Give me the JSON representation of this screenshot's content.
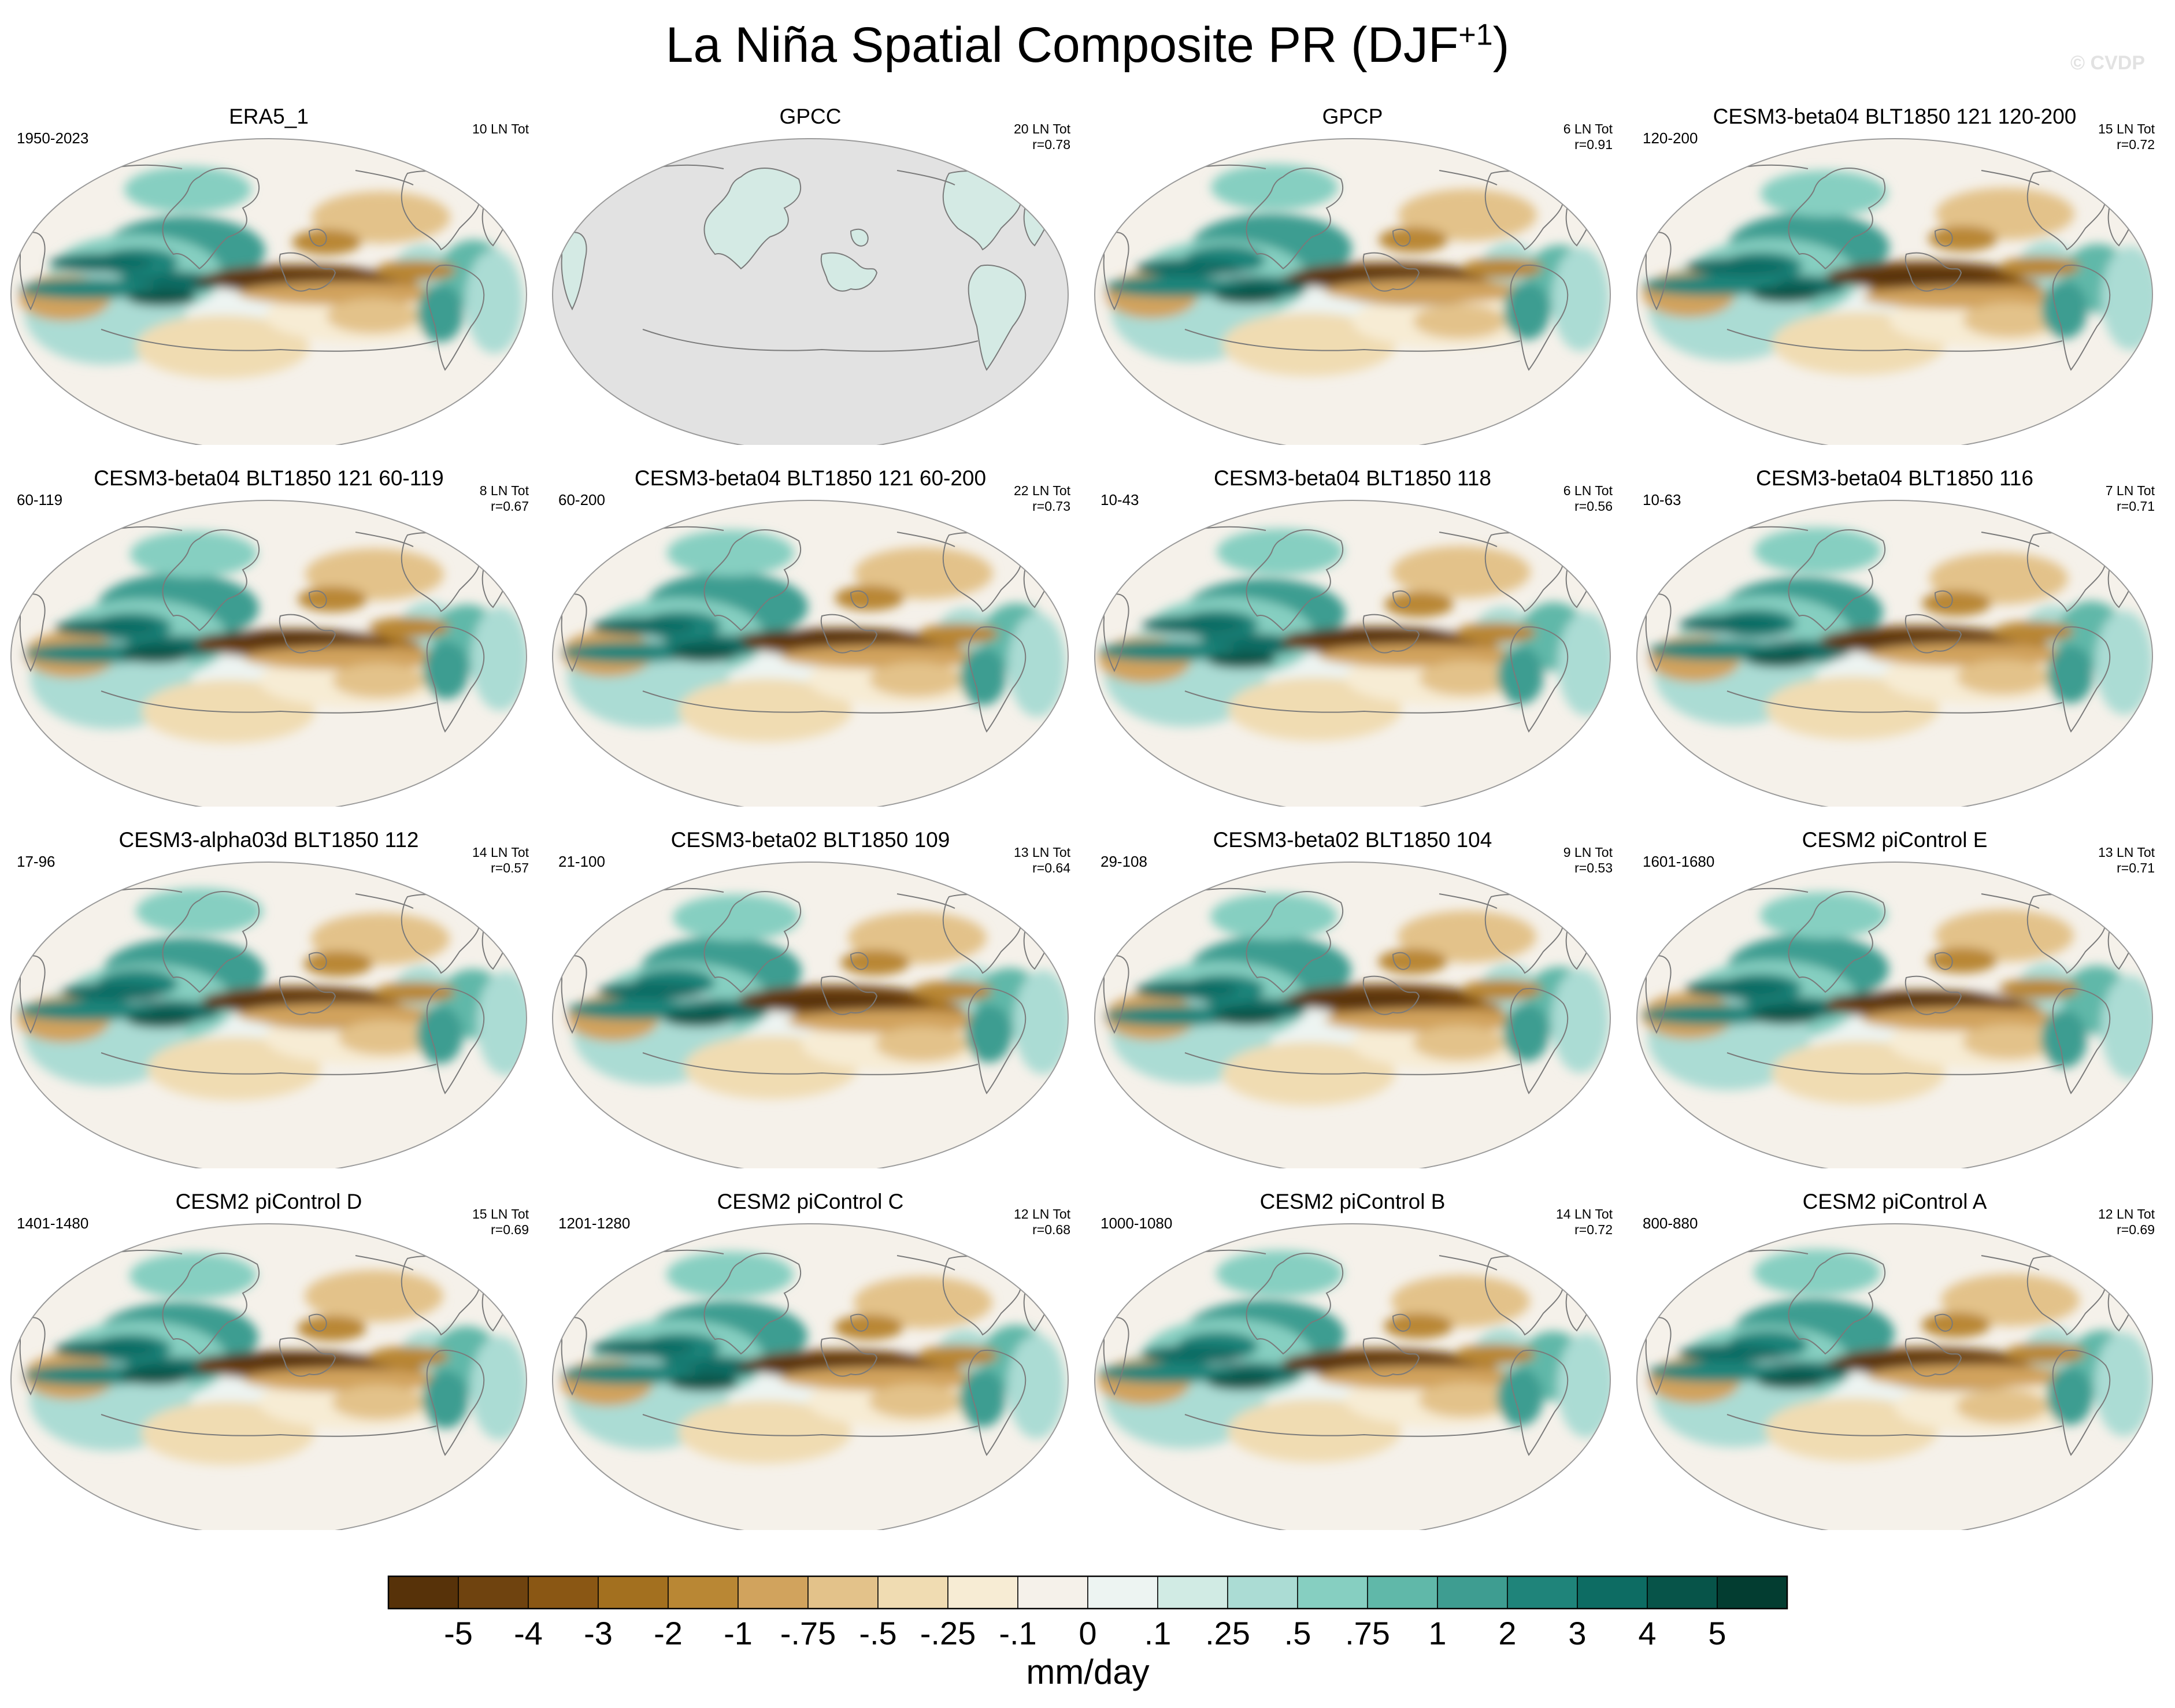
{
  "title": {
    "text": "La Niña Spatial Composite PR (DJF",
    "sup": "+1",
    "close": ")"
  },
  "watermark": "© CVDP",
  "colors": {
    "land_missing": "#e2e2e2",
    "coast": "#7a7a7a",
    "dry_scale": [
      "#573209",
      "#6f430f",
      "#8a5714",
      "#a3701f",
      "#b98734",
      "#d1a35d",
      "#e3c28a",
      "#f0dcb2",
      "#f7ecd4"
    ],
    "neutral": [
      "#f5f1ea",
      "#edf4f2"
    ],
    "wet_scale": [
      "#d1ebe4",
      "#abdcd4",
      "#86cfc1",
      "#60b8a9",
      "#3e9d91",
      "#1f847a",
      "#0d6c63",
      "#075449",
      "#033d31"
    ]
  },
  "chart_data": {
    "type": "map-composite",
    "units": "mm/day",
    "colorbar": {
      "labels": [
        "-5",
        "-4",
        "-3",
        "-2",
        "-1",
        "-.75",
        "-.5",
        "-.25",
        "-.1",
        "0",
        ".1",
        ".25",
        ".5",
        ".75",
        "1",
        "2",
        "3",
        "4",
        "5"
      ],
      "bins": 20
    },
    "panels": [
      {
        "name": "ERA5_1",
        "years": "1950-2023",
        "tot": "10 LN Tot",
        "r": "",
        "masked": false
      },
      {
        "name": "GPCC",
        "years": "",
        "tot": "20 LN Tot",
        "r": "r=0.78",
        "masked": true
      },
      {
        "name": "GPCP",
        "years": "",
        "tot": "6 LN Tot",
        "r": "r=0.91",
        "masked": false
      },
      {
        "name": "CESM3-beta04 BLT1850 121 120-200",
        "years": "120-200",
        "tot": "15 LN Tot",
        "r": "r=0.72",
        "masked": false
      },
      {
        "name": "CESM3-beta04 BLT1850 121 60-119",
        "years": "60-119",
        "tot": "8 LN Tot",
        "r": "r=0.67",
        "masked": false
      },
      {
        "name": "CESM3-beta04 BLT1850 121 60-200",
        "years": "60-200",
        "tot": "22 LN Tot",
        "r": "r=0.73",
        "masked": false
      },
      {
        "name": "CESM3-beta04 BLT1850 118",
        "years": "10-43",
        "tot": "6 LN Tot",
        "r": "r=0.56",
        "masked": false
      },
      {
        "name": "CESM3-beta04 BLT1850 116",
        "years": "10-63",
        "tot": "7 LN Tot",
        "r": "r=0.71",
        "masked": false
      },
      {
        "name": "CESM3-alpha03d BLT1850 112",
        "years": "17-96",
        "tot": "14 LN Tot",
        "r": "r=0.57",
        "masked": false
      },
      {
        "name": "CESM3-beta02 BLT1850 109",
        "years": "21-100",
        "tot": "13 LN Tot",
        "r": "r=0.64",
        "masked": false
      },
      {
        "name": "CESM3-beta02 BLT1850 104",
        "years": "29-108",
        "tot": "9 LN Tot",
        "r": "r=0.53",
        "masked": false
      },
      {
        "name": "CESM2 piControl E",
        "years": "1601-1680",
        "tot": "13 LN Tot",
        "r": "r=0.71",
        "masked": false
      },
      {
        "name": "CESM2 piControl D",
        "years": "1401-1480",
        "tot": "15 LN Tot",
        "r": "r=0.69",
        "masked": false
      },
      {
        "name": "CESM2 piControl C",
        "years": "1201-1280",
        "tot": "12 LN Tot",
        "r": "r=0.68",
        "masked": false
      },
      {
        "name": "CESM2 piControl B",
        "years": "1000-1080",
        "tot": "14 LN Tot",
        "r": "r=0.72",
        "masked": false
      },
      {
        "name": "CESM2 piControl A",
        "years": "800-880",
        "tot": "12 LN Tot",
        "r": "r=0.69",
        "masked": false
      }
    ]
  }
}
